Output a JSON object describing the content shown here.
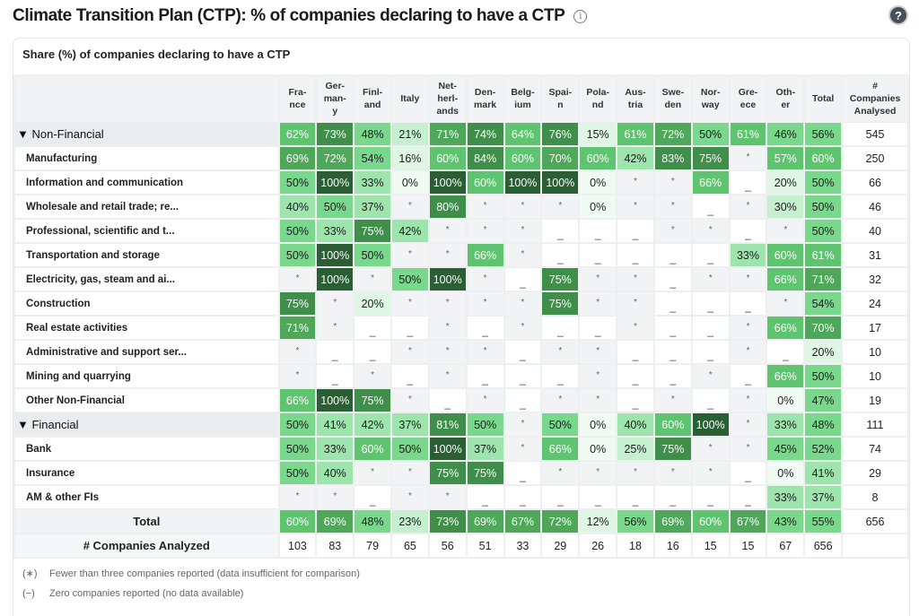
{
  "header": {
    "title": "Climate Transition Plan (CTP): % of companies declaring to have a CTP",
    "info_icon": "info-circle-icon",
    "help_icon": "question-circle-icon"
  },
  "card": {
    "title": "Share (%) of companies declaring to have a CTP"
  },
  "table": {
    "columns": [
      "Fra-\nnce",
      "Ger-\nman-\ny",
      "Finl-\nand",
      "Italy",
      "Net-\nherl-\nands",
      "Den-\nmark",
      "Belg-\nium",
      "Spai-\nn",
      "Pola-\nnd",
      "Aus-\ntria",
      "Swe-\nden",
      "Nor-\nway",
      "Gre-\nece",
      "Oth-\ner",
      "Total",
      "#\nCompanies\nAnalysed"
    ],
    "rows": [
      {
        "type": "group",
        "label": "▼ Non-Financial",
        "values": [
          "62%",
          "73%",
          "48%",
          "21%",
          "71%",
          "74%",
          "64%",
          "76%",
          "15%",
          "61%",
          "72%",
          "50%",
          "61%",
          "46%",
          "56%"
        ],
        "count": "545"
      },
      {
        "type": "item",
        "label": "Manufacturing",
        "values": [
          "69%",
          "72%",
          "54%",
          "16%",
          "60%",
          "84%",
          "60%",
          "70%",
          "60%",
          "42%",
          "83%",
          "75%",
          "*",
          "57%",
          "60%"
        ],
        "count": "250"
      },
      {
        "type": "item",
        "label": "Information and communication",
        "values": [
          "50%",
          "100%",
          "33%",
          "0%",
          "100%",
          "60%",
          "100%",
          "100%",
          "0%",
          "*",
          "*",
          "66%",
          "_",
          "20%",
          "50%"
        ],
        "count": "66"
      },
      {
        "type": "item",
        "label": "Wholesale and retail trade; re...",
        "values": [
          "40%",
          "50%",
          "37%",
          "*",
          "80%",
          "*",
          "*",
          "*",
          "0%",
          "*",
          "*",
          "_",
          "*",
          "30%",
          "50%"
        ],
        "count": "46"
      },
      {
        "type": "item",
        "label": "Professional, scientific and t...",
        "values": [
          "50%",
          "33%",
          "75%",
          "42%",
          "*",
          "*",
          "*",
          "_",
          "_",
          "_",
          "*",
          "*",
          "_",
          "*",
          "50%"
        ],
        "count": "40"
      },
      {
        "type": "item",
        "label": "Transportation and storage",
        "values": [
          "50%",
          "100%",
          "50%",
          "*",
          "*",
          "66%",
          "*",
          "_",
          "_",
          "_",
          "_",
          "_",
          "33%",
          "60%",
          "61%"
        ],
        "count": "31"
      },
      {
        "type": "item",
        "label": "Electricity, gas, steam and ai...",
        "values": [
          "*",
          "100%",
          "*",
          "50%",
          "100%",
          "*",
          "_",
          "75%",
          "*",
          "*",
          "_",
          "*",
          "*",
          "66%",
          "71%"
        ],
        "count": "32"
      },
      {
        "type": "item",
        "label": "Construction",
        "values": [
          "75%",
          "*",
          "20%",
          "*",
          "*",
          "*",
          "*",
          "75%",
          "*",
          "*",
          "_",
          "_",
          "_",
          "*",
          "54%"
        ],
        "count": "24"
      },
      {
        "type": "item",
        "label": "Real estate activities",
        "values": [
          "71%",
          "*",
          "_",
          "_",
          "*",
          "_",
          "*",
          "_",
          "_",
          "*",
          "_",
          "_",
          "*",
          "66%",
          "70%"
        ],
        "count": "17"
      },
      {
        "type": "item",
        "label": "Administrative and support ser...",
        "values": [
          "*",
          "_",
          "_",
          "*",
          "*",
          "*",
          "_",
          "*",
          "*",
          "_",
          "_",
          "_",
          "*",
          "_",
          "20%"
        ],
        "count": "10"
      },
      {
        "type": "item",
        "label": "Mining and quarrying",
        "values": [
          "*",
          "_",
          "*",
          "_",
          "*",
          "_",
          "_",
          "_",
          "*",
          "_",
          "_",
          "*",
          "_",
          "66%",
          "50%"
        ],
        "count": "10"
      },
      {
        "type": "item",
        "label": "Other Non-Financial",
        "values": [
          "66%",
          "100%",
          "75%",
          "*",
          "_",
          "*",
          "_",
          "*",
          "*",
          "_",
          "*",
          "_",
          "*",
          "0%",
          "47%"
        ],
        "count": "19"
      },
      {
        "type": "group",
        "label": "▼ Financial",
        "values": [
          "50%",
          "41%",
          "42%",
          "37%",
          "81%",
          "50%",
          "*",
          "50%",
          "0%",
          "40%",
          "60%",
          "100%",
          "*",
          "33%",
          "48%"
        ],
        "count": "111"
      },
      {
        "type": "item",
        "label": "Bank",
        "values": [
          "50%",
          "33%",
          "60%",
          "50%",
          "100%",
          "37%",
          "*",
          "66%",
          "0%",
          "25%",
          "75%",
          "*",
          "*",
          "45%",
          "52%"
        ],
        "count": "74"
      },
      {
        "type": "item",
        "label": "Insurance",
        "values": [
          "50%",
          "40%",
          "*",
          "*",
          "75%",
          "75%",
          "_",
          "*",
          "*",
          "*",
          "*",
          "*",
          "_",
          "0%",
          "41%"
        ],
        "count": "29"
      },
      {
        "type": "item",
        "label": "AM & other FIs",
        "values": [
          "*",
          "*",
          "_",
          "*",
          "*",
          "_",
          "_",
          "_",
          "_",
          "_",
          "_",
          "_",
          "_",
          "33%",
          "37%"
        ],
        "count": "8"
      },
      {
        "type": "total",
        "label": "Total",
        "values": [
          "60%",
          "69%",
          "48%",
          "23%",
          "73%",
          "69%",
          "67%",
          "72%",
          "12%",
          "56%",
          "69%",
          "60%",
          "67%",
          "43%",
          "55%"
        ],
        "count": "656"
      },
      {
        "type": "count",
        "label": "# Companies Analyzed",
        "values": [
          "103",
          "83",
          "79",
          "65",
          "56",
          "51",
          "33",
          "29",
          "26",
          "18",
          "16",
          "15",
          "15",
          "67",
          "656"
        ],
        "count": ""
      }
    ]
  },
  "notes": [
    {
      "symbol": "(∗)",
      "text": "Fewer than three companies reported (data insufficient for comparison)"
    },
    {
      "symbol": "(−)",
      "text": "Zero companies reported (no data available)"
    }
  ],
  "colors": {
    "scale": [
      "#f1fbf3",
      "#def6e3",
      "#c6efcf",
      "#9ee5ad",
      "#7ad88c",
      "#5fc46f",
      "#4fa85a",
      "#3f8e4a",
      "#2a5e33"
    ],
    "na_bg": "#f2f3f5",
    "header_bg": "#f2f3f5"
  }
}
